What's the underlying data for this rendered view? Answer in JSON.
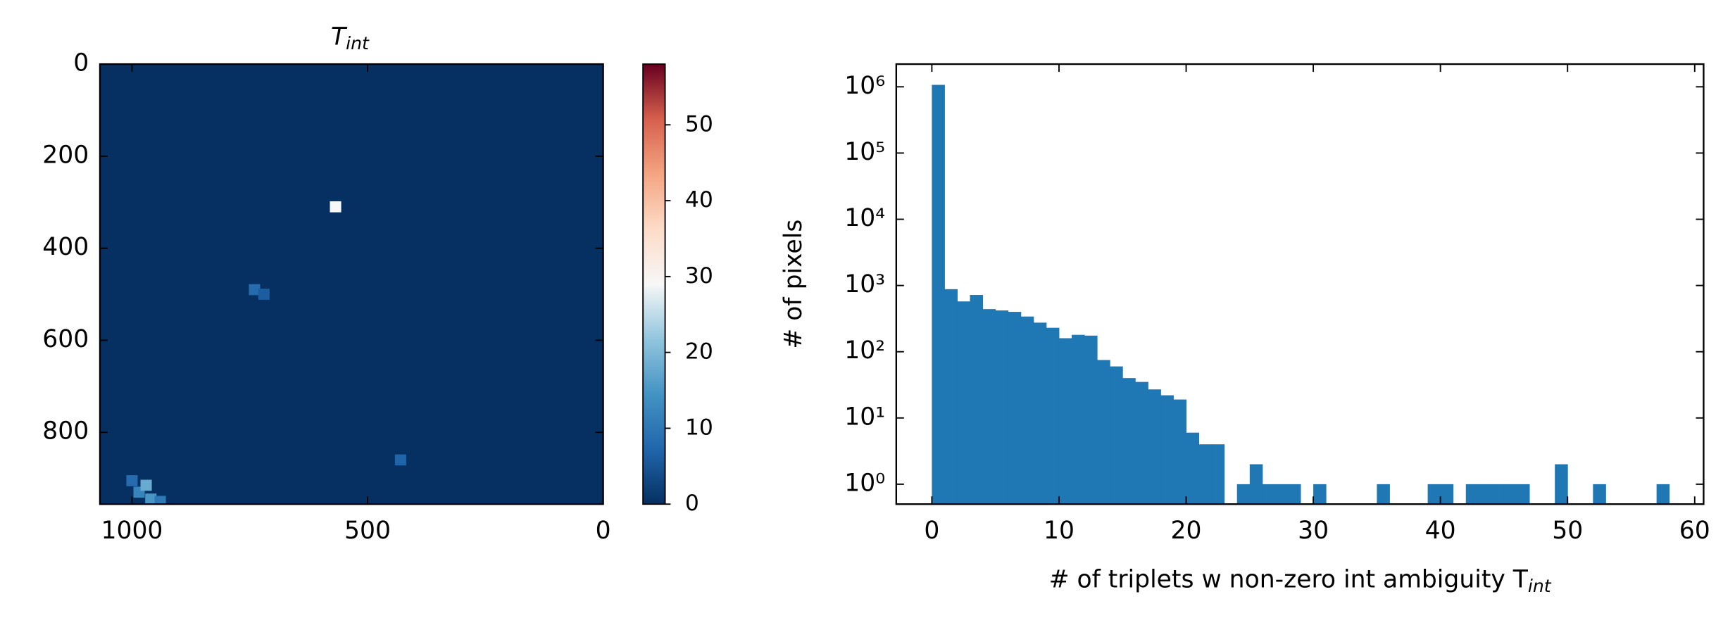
{
  "chart_data": [
    {
      "type": "heatmap",
      "title": "T",
      "title_sub": "int",
      "xlim": [
        1068,
        0
      ],
      "ylim": [
        956,
        0
      ],
      "xticks": [
        1000,
        500,
        0
      ],
      "yticks": [
        0,
        200,
        400,
        600,
        800
      ],
      "background": 0,
      "spot_size": 24,
      "spots": [
        [
          568,
          310,
          29
        ],
        [
          985,
          930,
          12
        ],
        [
          960,
          945,
          15
        ],
        [
          1000,
          905,
          8
        ],
        [
          940,
          950,
          10
        ],
        [
          970,
          915,
          18
        ],
        [
          740,
          490,
          8
        ],
        [
          720,
          500,
          6
        ],
        [
          430,
          860,
          7
        ]
      ],
      "colormap": "RdBu_r",
      "clim": [
        0,
        58
      ],
      "cticks": [
        0,
        10,
        20,
        30,
        40,
        50
      ]
    },
    {
      "type": "histogram",
      "xlabel": "# of triplets w non-zero int ambiguity T",
      "xlabel_sub": "int",
      "ylabel": "# of pixels",
      "color": "#1f77b4",
      "log_y": true,
      "bins": [
        0,
        1,
        2,
        3,
        4,
        5,
        6,
        7,
        8,
        9,
        10,
        11,
        12,
        13,
        14,
        15,
        16,
        17,
        18,
        19,
        20,
        21,
        22,
        23,
        24,
        25,
        26,
        27,
        28,
        29,
        30,
        31,
        32,
        33,
        34,
        35,
        36,
        37,
        38,
        39,
        40,
        41,
        42,
        43,
        44,
        45,
        46,
        47,
        48,
        49,
        50,
        51,
        52,
        53,
        54,
        55,
        56,
        57,
        58
      ],
      "values": [
        1070000,
        880,
        575,
        720,
        440,
        420,
        400,
        340,
        275,
        230,
        160,
        180,
        175,
        75,
        60,
        40,
        35,
        27,
        22,
        19,
        6,
        4,
        4,
        0,
        1,
        2,
        1,
        1,
        1,
        0,
        1,
        0,
        0,
        0,
        0,
        1,
        0,
        0,
        0,
        1,
        1,
        0,
        1,
        1,
        1,
        1,
        1,
        0,
        0,
        2,
        0,
        0,
        1,
        0,
        0,
        0,
        0,
        1
      ],
      "xlim": [
        -2.8,
        60.7
      ],
      "ylim": [
        0.5,
        2200000
      ],
      "xticks": [
        0,
        10,
        20,
        30,
        40,
        50,
        60
      ],
      "yticks": [
        {
          "value": 1,
          "label": "10⁰"
        },
        {
          "value": 10,
          "label": "10¹"
        },
        {
          "value": 100,
          "label": "10²"
        },
        {
          "value": 1000,
          "label": "10³"
        },
        {
          "value": 10000,
          "label": "10⁴"
        },
        {
          "value": 100000,
          "label": "10⁵"
        },
        {
          "value": 1000000,
          "label": "10⁶"
        }
      ]
    }
  ]
}
